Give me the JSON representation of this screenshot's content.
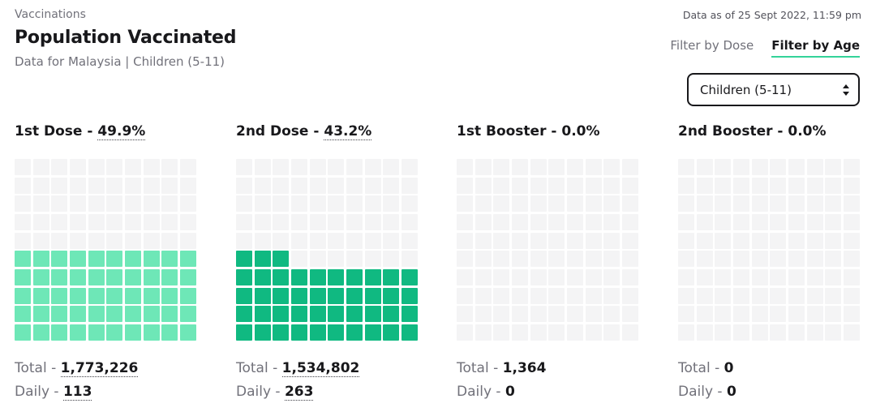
{
  "header": {
    "eyebrow": "Vaccinations",
    "title": "Population Vaccinated",
    "subtitle": "Data for Malaysia | Children (5-11)",
    "as_of": "Data as of 25 Sept 2022, 11:59 pm"
  },
  "tabs": [
    {
      "label": "Filter by Dose",
      "active": false
    },
    {
      "label": "Filter by Age",
      "active": true
    }
  ],
  "age_select": {
    "value": "Children (5-11)"
  },
  "colors": {
    "empty": "#f4f4f5",
    "dose1": "#6ee7b7",
    "dose2": "#10b981"
  },
  "cards": [
    {
      "title": "1st Dose - ",
      "pct": "49.9%",
      "filled": 49.9,
      "fill_color": "dose1",
      "total_label": "Total - ",
      "total": "1,773,226",
      "daily_label": "Daily - ",
      "daily": "113",
      "dotted": true
    },
    {
      "title": "2nd Dose - ",
      "pct": "43.2%",
      "filled": 43.2,
      "fill_color": "dose2",
      "total_label": "Total - ",
      "total": "1,534,802",
      "daily_label": "Daily - ",
      "daily": "263",
      "dotted": true
    },
    {
      "title": "1st Booster - ",
      "pct": "0.0%",
      "filled": 0.0,
      "fill_color": "dose1",
      "total_label": "Total - ",
      "total": "1,364",
      "daily_label": "Daily - ",
      "daily": "0",
      "dotted": false
    },
    {
      "title": "2nd Booster - ",
      "pct": "0.0%",
      "filled": 0.0,
      "fill_color": "dose1",
      "total_label": "Total - ",
      "total": "0",
      "daily_label": "Daily - ",
      "daily": "0",
      "dotted": false
    }
  ]
}
